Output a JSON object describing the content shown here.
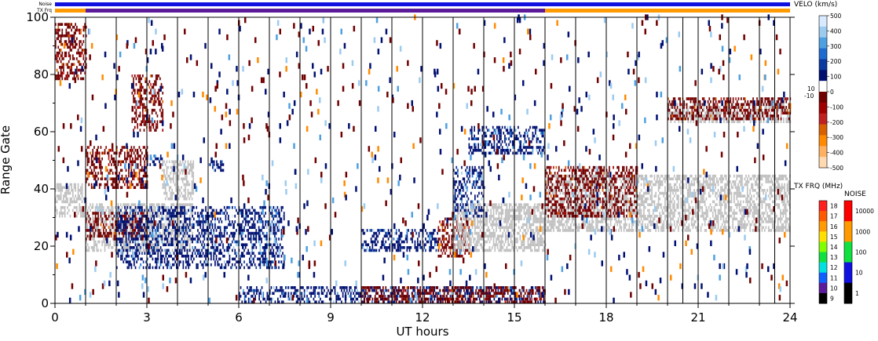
{
  "chart_data": {
    "type": "heatmap",
    "xlabel": "UT hours",
    "ylabel": "Range Gate",
    "xlim": [
      0,
      24
    ],
    "ylim": [
      0,
      100
    ],
    "x_ticks": [
      "0",
      "3",
      "6",
      "9",
      "12",
      "15",
      "18",
      "21",
      "24"
    ],
    "y_ticks": [
      "0",
      "20",
      "40",
      "60",
      "80",
      "100"
    ],
    "scan_boundaries_hr": [
      1,
      2,
      3,
      4,
      5,
      6,
      7,
      8,
      9,
      10,
      11,
      12,
      13,
      14,
      15,
      16,
      17,
      18,
      19,
      20,
      20.5,
      21,
      22,
      23,
      23.5
    ],
    "status_bars": {
      "noise": {
        "label": "Noise",
        "segments": [
          {
            "start": 0,
            "end": 24,
            "color": "#1010e0"
          }
        ]
      },
      "tx_freq": {
        "label": "TX Frq",
        "segments": [
          {
            "start": 0,
            "end": 1,
            "color": "#ff9a00"
          },
          {
            "start": 1,
            "end": 16,
            "color": "#5a1a9a"
          },
          {
            "start": 16,
            "end": 24,
            "color": "#ff9a00"
          }
        ]
      }
    },
    "echo_regions": [
      {
        "x": [
          0,
          1
        ],
        "gate": [
          30,
          42
        ],
        "class": "ground_scatter"
      },
      {
        "x": [
          1,
          4.5
        ],
        "gate": [
          18,
          35
        ],
        "class": "ground_scatter"
      },
      {
        "x": [
          3.5,
          4.5
        ],
        "gate": [
          36,
          50
        ],
        "class": "ground_scatter"
      },
      {
        "x": [
          1,
          3
        ],
        "gate": [
          40,
          55
        ],
        "class": "negative_velocity"
      },
      {
        "x": [
          1,
          3
        ],
        "gate": [
          22,
          32
        ],
        "class": "negative_velocity"
      },
      {
        "x": [
          2.5,
          3.5
        ],
        "gate": [
          60,
          80
        ],
        "class": "negative_velocity"
      },
      {
        "x": [
          2,
          7.5
        ],
        "gate": [
          12,
          34
        ],
        "class": "positive_velocity"
      },
      {
        "x": [
          3,
          3.5
        ],
        "gate": [
          48,
          52
        ],
        "class": "positive_velocity"
      },
      {
        "x": [
          5,
          5.5
        ],
        "gate": [
          46,
          50
        ],
        "class": "positive_velocity"
      },
      {
        "x": [
          10,
          12.5
        ],
        "gate": [
          18,
          26
        ],
        "class": "positive_velocity"
      },
      {
        "x": [
          12.5,
          13.5
        ],
        "gate": [
          16,
          30
        ],
        "class": "negative_velocity"
      },
      {
        "x": [
          13,
          16
        ],
        "gate": [
          18,
          35
        ],
        "class": "ground_scatter"
      },
      {
        "x": [
          13,
          14
        ],
        "gate": [
          30,
          48
        ],
        "class": "positive_velocity"
      },
      {
        "x": [
          13.5,
          16
        ],
        "gate": [
          52,
          62
        ],
        "class": "positive_velocity"
      },
      {
        "x": [
          16,
          24
        ],
        "gate": [
          25,
          45
        ],
        "class": "ground_scatter"
      },
      {
        "x": [
          16,
          19
        ],
        "gate": [
          30,
          48
        ],
        "class": "negative_velocity"
      },
      {
        "x": [
          20,
          24
        ],
        "gate": [
          63,
          70
        ],
        "class": "ground_scatter"
      },
      {
        "x": [
          20,
          24
        ],
        "gate": [
          64,
          72
        ],
        "class": "negative_velocity"
      },
      {
        "x": [
          0,
          1
        ],
        "gate": [
          78,
          98
        ],
        "class": "negative_velocity"
      },
      {
        "x": [
          6,
          16
        ],
        "gate": [
          0,
          6
        ],
        "class": "positive_velocity"
      },
      {
        "x": [
          10,
          16
        ],
        "gate": [
          0,
          6
        ],
        "class": "negative_velocity"
      }
    ],
    "legends": {
      "velocity": {
        "title": "VELO (km/s)",
        "ticks": [
          "500",
          "400",
          "300",
          "200",
          "100",
          "0",
          "-100",
          "-200",
          "-300",
          "-400",
          "-500"
        ],
        "near_zero_labels": [
          "10",
          "-10"
        ],
        "colors": [
          "#d8eaff",
          "#9ccbf0",
          "#4ea0e0",
          "#1f6cd0",
          "#0b3aa0",
          "#001070",
          "#ffffff",
          "#700000",
          "#a00000",
          "#c02020",
          "#d86000",
          "#ff8a00",
          "#ffb060",
          "#ffd9b0"
        ],
        "ground_scatter_color": "#c0c0c0"
      },
      "tx_freq": {
        "title": "TX FRQ (MHz)",
        "ticks": [
          "18",
          "17",
          "16",
          "15",
          "14",
          "13",
          "12",
          "11",
          "10",
          "9"
        ],
        "colors": [
          "#ff2020",
          "#ff5a00",
          "#ff9a00",
          "#ffe000",
          "#80ff00",
          "#10e040",
          "#00e0e0",
          "#1060ff",
          "#5a1a9a",
          "#000000"
        ]
      },
      "noise": {
        "title": "NOISE",
        "ticks": [
          "10000",
          "1000",
          "100",
          "10",
          "1"
        ],
        "colors": [
          "#ff0000",
          "#ff9a00",
          "#10e040",
          "#1010e0",
          "#000000"
        ]
      }
    }
  }
}
